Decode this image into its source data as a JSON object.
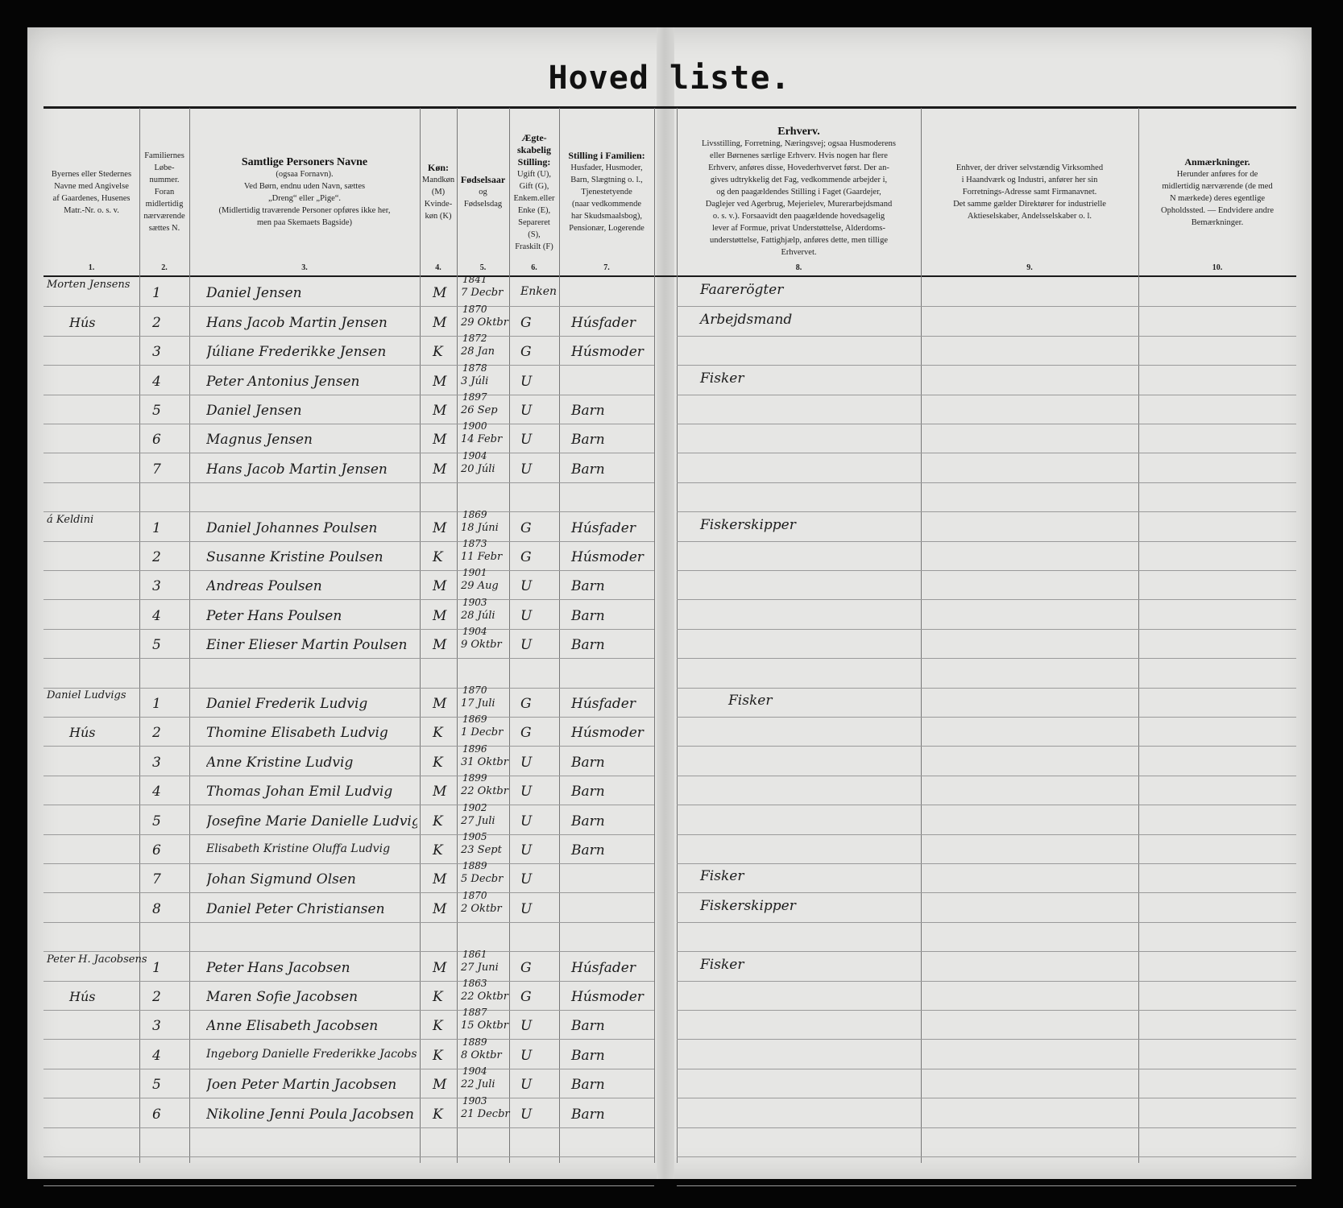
{
  "title": "Hoved liste.",
  "columns": [
    {
      "num": "1.",
      "lines": [
        "Byernes eller Stedernes",
        "Navne med Angivelse",
        "af Gaardenes, Husenes",
        "Matr.-Nr. o. s. v."
      ]
    },
    {
      "num": "2.",
      "lines": [
        "Familiernes",
        "Løbe-",
        "nummer.",
        "Foran",
        "midlertidig",
        "nærværende",
        "sættes N."
      ]
    },
    {
      "num": "3.",
      "heading": "Samtlige Personers Navne",
      "lines": [
        "(ogsaa Fornavn).",
        "Ved Børn, endnu uden Navn, sættes",
        "„Dreng“ eller „Pige“.",
        "(Midlertidig traværende Personer opføres ikke her,",
        "men paa Skemaets Bagside)"
      ]
    },
    {
      "num": "4.",
      "heading": "Køn:",
      "lines": [
        "Mandkøn",
        "(M)",
        "Kvinde-",
        "køn (K)"
      ]
    },
    {
      "num": "5.",
      "heading": "Fødselsaar",
      "lines": [
        "og",
        "Fødselsdag"
      ]
    },
    {
      "num": "6.",
      "heading": "Ægte-skabelig Stilling:",
      "lines": [
        "Ugift (U),",
        "Gift (G),",
        "Enkem.eller",
        "Enke (E),",
        "Separeret",
        "(S),",
        "Fraskilt (F)"
      ]
    },
    {
      "num": "7.",
      "heading": "Stilling i Familien:",
      "lines": [
        "Husfader, Husmoder,",
        "Barn, Slægtning o. l.,",
        "Tjenestetyende",
        "(naar vedkommende",
        "har Skudsmaalsbog),",
        "Pensionær, Logerende"
      ]
    },
    {
      "num": "8.",
      "heading": "Erhverv.",
      "lines": [
        "Livsstilling, Forretning, Næringsvej; ogsaa Husmoderens",
        "eller Børnenes særlige Erhverv. Hvis nogen har flere",
        "Erhverv, anføres disse, Hovederhvervet først. Der an-",
        "gives udtrykkelig det Fag, vedkommende arbejder i,",
        "og den paagældendes Stilling i Faget (Gaardejer,",
        "Daglejer ved Agerbrug, Mejerielev, Murerarbejdsmand",
        "o. s. v.). Forsaavidt den paagældende hovedsagelig",
        "lever af Formue, privat Understøttelse, Alderdoms-",
        "understøttelse, Fattighjælp, anføres dette, men tillige",
        "Erhvervet."
      ]
    },
    {
      "num": "9.",
      "lines": [
        "Enhver, der driver selvstændig Virksomhed",
        "i Haandværk og Industri, anfører her sin",
        "Forretnings-Adresse samt Firmanavnet.",
        "Det samme gælder Direktører for industrielle",
        "Aktieselskaber, Andelsselskaber o. l."
      ]
    },
    {
      "num": "10.",
      "heading": "Anmærkninger.",
      "lines": [
        "Herunder anføres for de",
        "midlertidig nærværende (de med",
        "N mærkede) deres egentlige",
        "Opholdssted. — Endvidere andre",
        "Bemærkninger."
      ]
    }
  ],
  "rows": [
    {
      "place": "Morten Jensens",
      "num": "1",
      "name": "Daniel Jensen",
      "sex": "M",
      "year": "1841",
      "day": "7 Decbr",
      "marital": "Enken",
      "position": "",
      "occupation": "Faarerögter"
    },
    {
      "place": "Hús",
      "num": "2",
      "name": "Hans Jacob Martin Jensen",
      "sex": "M",
      "year": "1870",
      "day": "29 Oktbr",
      "marital": "G",
      "position": "Húsfader",
      "occupation": "Arbejdsmand"
    },
    {
      "place": "",
      "num": "3",
      "name": "Júliane Frederikke Jensen",
      "sex": "K",
      "year": "1872",
      "day": "28 Jan",
      "marital": "G",
      "position": "Húsmoder",
      "occupation": ""
    },
    {
      "place": "",
      "num": "4",
      "name": "Peter Antonius Jensen",
      "sex": "M",
      "year": "1878",
      "day": "3 Júli",
      "marital": "U",
      "position": "",
      "occupation": "Fisker"
    },
    {
      "place": "",
      "num": "5",
      "name": "Daniel Jensen",
      "sex": "M",
      "year": "1897",
      "day": "26 Sep",
      "marital": "U",
      "position": "Barn",
      "occupation": ""
    },
    {
      "place": "",
      "num": "6",
      "name": "Magnus Jensen",
      "sex": "M",
      "year": "1900",
      "day": "14 Febr",
      "marital": "U",
      "position": "Barn",
      "occupation": ""
    },
    {
      "place": "",
      "num": "7",
      "name": "Hans Jacob Martin Jensen",
      "sex": "M",
      "year": "1904",
      "day": "20 Júli",
      "marital": "U",
      "position": "Barn",
      "occupation": ""
    },
    null,
    {
      "place": "á Keldini",
      "num": "1",
      "name": "Daniel Johannes Poulsen",
      "sex": "M",
      "year": "1869",
      "day": "18 Júni",
      "marital": "G",
      "position": "Húsfader",
      "occupation": "Fiskerskipper"
    },
    {
      "place": "",
      "num": "2",
      "name": "Susanne Kristine Poulsen",
      "sex": "K",
      "year": "1873",
      "day": "11 Febr",
      "marital": "G",
      "position": "Húsmoder",
      "occupation": ""
    },
    {
      "place": "",
      "num": "3",
      "name": "Andreas Poulsen",
      "sex": "M",
      "year": "1901",
      "day": "29 Aug",
      "marital": "U",
      "position": "Barn",
      "occupation": ""
    },
    {
      "place": "",
      "num": "4",
      "name": "Peter Hans Poulsen",
      "sex": "M",
      "year": "1903",
      "day": "28 Júli",
      "marital": "U",
      "position": "Barn",
      "occupation": ""
    },
    {
      "place": "",
      "num": "5",
      "name": "Einer Elieser Martin Poulsen",
      "sex": "M",
      "year": "1904",
      "day": "9 Oktbr",
      "marital": "U",
      "position": "Barn",
      "occupation": ""
    },
    null,
    {
      "place": "Daniel Ludvigs",
      "num": "1",
      "name": "Daniel Frederik Ludvig",
      "sex": "M",
      "year": "1870",
      "day": "17 Juli",
      "marital": "G",
      "position": "Húsfader",
      "occupation": "Fisker"
    },
    {
      "place": "Hús",
      "num": "2",
      "name": "Thomine Elisabeth Ludvig",
      "sex": "K",
      "year": "1869",
      "day": "1 Decbr",
      "marital": "G",
      "position": "Húsmoder",
      "occupation": ""
    },
    {
      "place": "",
      "num": "3",
      "name": "Anne Kristine Ludvig",
      "sex": "K",
      "year": "1896",
      "day": "31 Oktbr",
      "marital": "U",
      "position": "Barn",
      "occupation": ""
    },
    {
      "place": "",
      "num": "4",
      "name": "Thomas Johan Emil Ludvig",
      "sex": "M",
      "year": "1899",
      "day": "22 Oktbr",
      "marital": "U",
      "position": "Barn",
      "occupation": ""
    },
    {
      "place": "",
      "num": "5",
      "name": "Josefine Marie Danielle Ludvig",
      "sex": "K",
      "year": "1902",
      "day": "27 Juli",
      "marital": "U",
      "position": "Barn",
      "occupation": ""
    },
    {
      "place": "",
      "num": "6",
      "name": "Elisabeth Kristine Oluffa Ludvig",
      "sex": "K",
      "year": "1905",
      "day": "23 Sept",
      "marital": "U",
      "position": "Barn",
      "occupation": ""
    },
    {
      "place": "",
      "num": "7",
      "name": "Johan Sigmund Olsen",
      "sex": "M",
      "year": "1889",
      "day": "5 Decbr",
      "marital": "U",
      "position": "",
      "occupation": "Fisker"
    },
    {
      "place": "",
      "num": "8",
      "name": "Daniel Peter Christiansen",
      "sex": "M",
      "year": "1870",
      "day": "2 Oktbr",
      "marital": "U",
      "position": "",
      "occupation": "Fiskerskipper"
    },
    null,
    {
      "place": "Peter H. Jacobsens",
      "num": "1",
      "name": "Peter Hans Jacobsen",
      "sex": "M",
      "year": "1861",
      "day": "27 Juni",
      "marital": "G",
      "position": "Húsfader",
      "occupation": "Fisker"
    },
    {
      "place": "Hús",
      "num": "2",
      "name": "Maren Sofie Jacobsen",
      "sex": "K",
      "year": "1863",
      "day": "22 Oktbr",
      "marital": "G",
      "position": "Húsmoder",
      "occupation": ""
    },
    {
      "place": "",
      "num": "3",
      "name": "Anne Elisabeth Jacobsen",
      "sex": "K",
      "year": "1887",
      "day": "15 Oktbr",
      "marital": "U",
      "position": "Barn",
      "occupation": ""
    },
    {
      "place": "",
      "num": "4",
      "name": "Ingeborg Danielle Frederikke Jacobsen",
      "sex": "K",
      "year": "1889",
      "day": "8 Oktbr",
      "marital": "U",
      "position": "Barn",
      "occupation": ""
    },
    {
      "place": "",
      "num": "5",
      "name": "Joen Peter Martin Jacobsen",
      "sex": "M",
      "year": "1904",
      "day": "22 Juli",
      "marital": "U",
      "position": "Barn",
      "occupation": ""
    },
    {
      "place": "",
      "num": "6",
      "name": "Nikoline Jenni Poula Jacobsen",
      "sex": "K",
      "year": "1903",
      "day": "21 Decbr",
      "marital": "U",
      "position": "Barn",
      "occupation": ""
    }
  ]
}
